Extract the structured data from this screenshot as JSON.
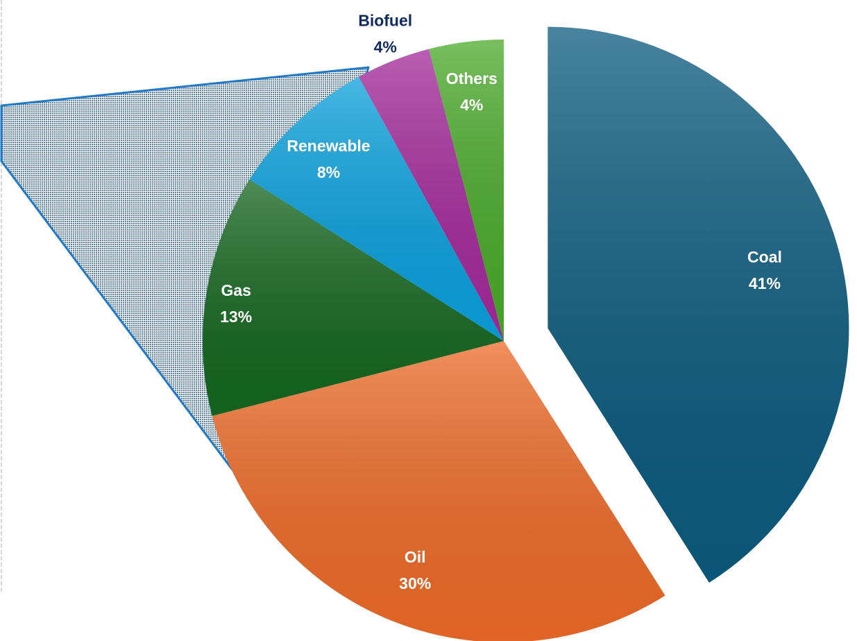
{
  "chart_data": {
    "type": "pie",
    "title": "",
    "slices": [
      {
        "name": "Coal",
        "label": "Coal",
        "value": 41,
        "value_label": "41%",
        "color": "#0b5a7e",
        "exploded": true,
        "label_color": "#ffffff"
      },
      {
        "name": "Oil",
        "label": "Oil",
        "value": 30,
        "value_label": "30%",
        "color": "#ec6a28",
        "exploded": false,
        "label_color": "#ffffff"
      },
      {
        "name": "Gas",
        "label": "Gas",
        "value": 13,
        "value_label": "13%",
        "color": "#14661f",
        "exploded": false,
        "label_color": "#ffffff"
      },
      {
        "name": "Renewable",
        "label": "Renewable",
        "value": 8,
        "value_label": "8%",
        "color": "#0aa0dc",
        "exploded": false,
        "label_color": "#ffffff"
      },
      {
        "name": "Biofuel",
        "label": "Biofuel",
        "value": 4,
        "value_label": "4%",
        "color": "#a3299a",
        "exploded": false,
        "label_color": "#0f2a5c",
        "label_outside": true
      },
      {
        "name": "Others",
        "label": "Others",
        "value": 4,
        "value_label": "4%",
        "color": "#4aaa2a",
        "exploded": false,
        "label_color": "#ffffff"
      }
    ],
    "start_angle": "12 o'clock",
    "direction": "clockwise",
    "legend": "none",
    "callout": {
      "style": "dotted-blue",
      "attached_to": "Gas, Renewable"
    }
  }
}
